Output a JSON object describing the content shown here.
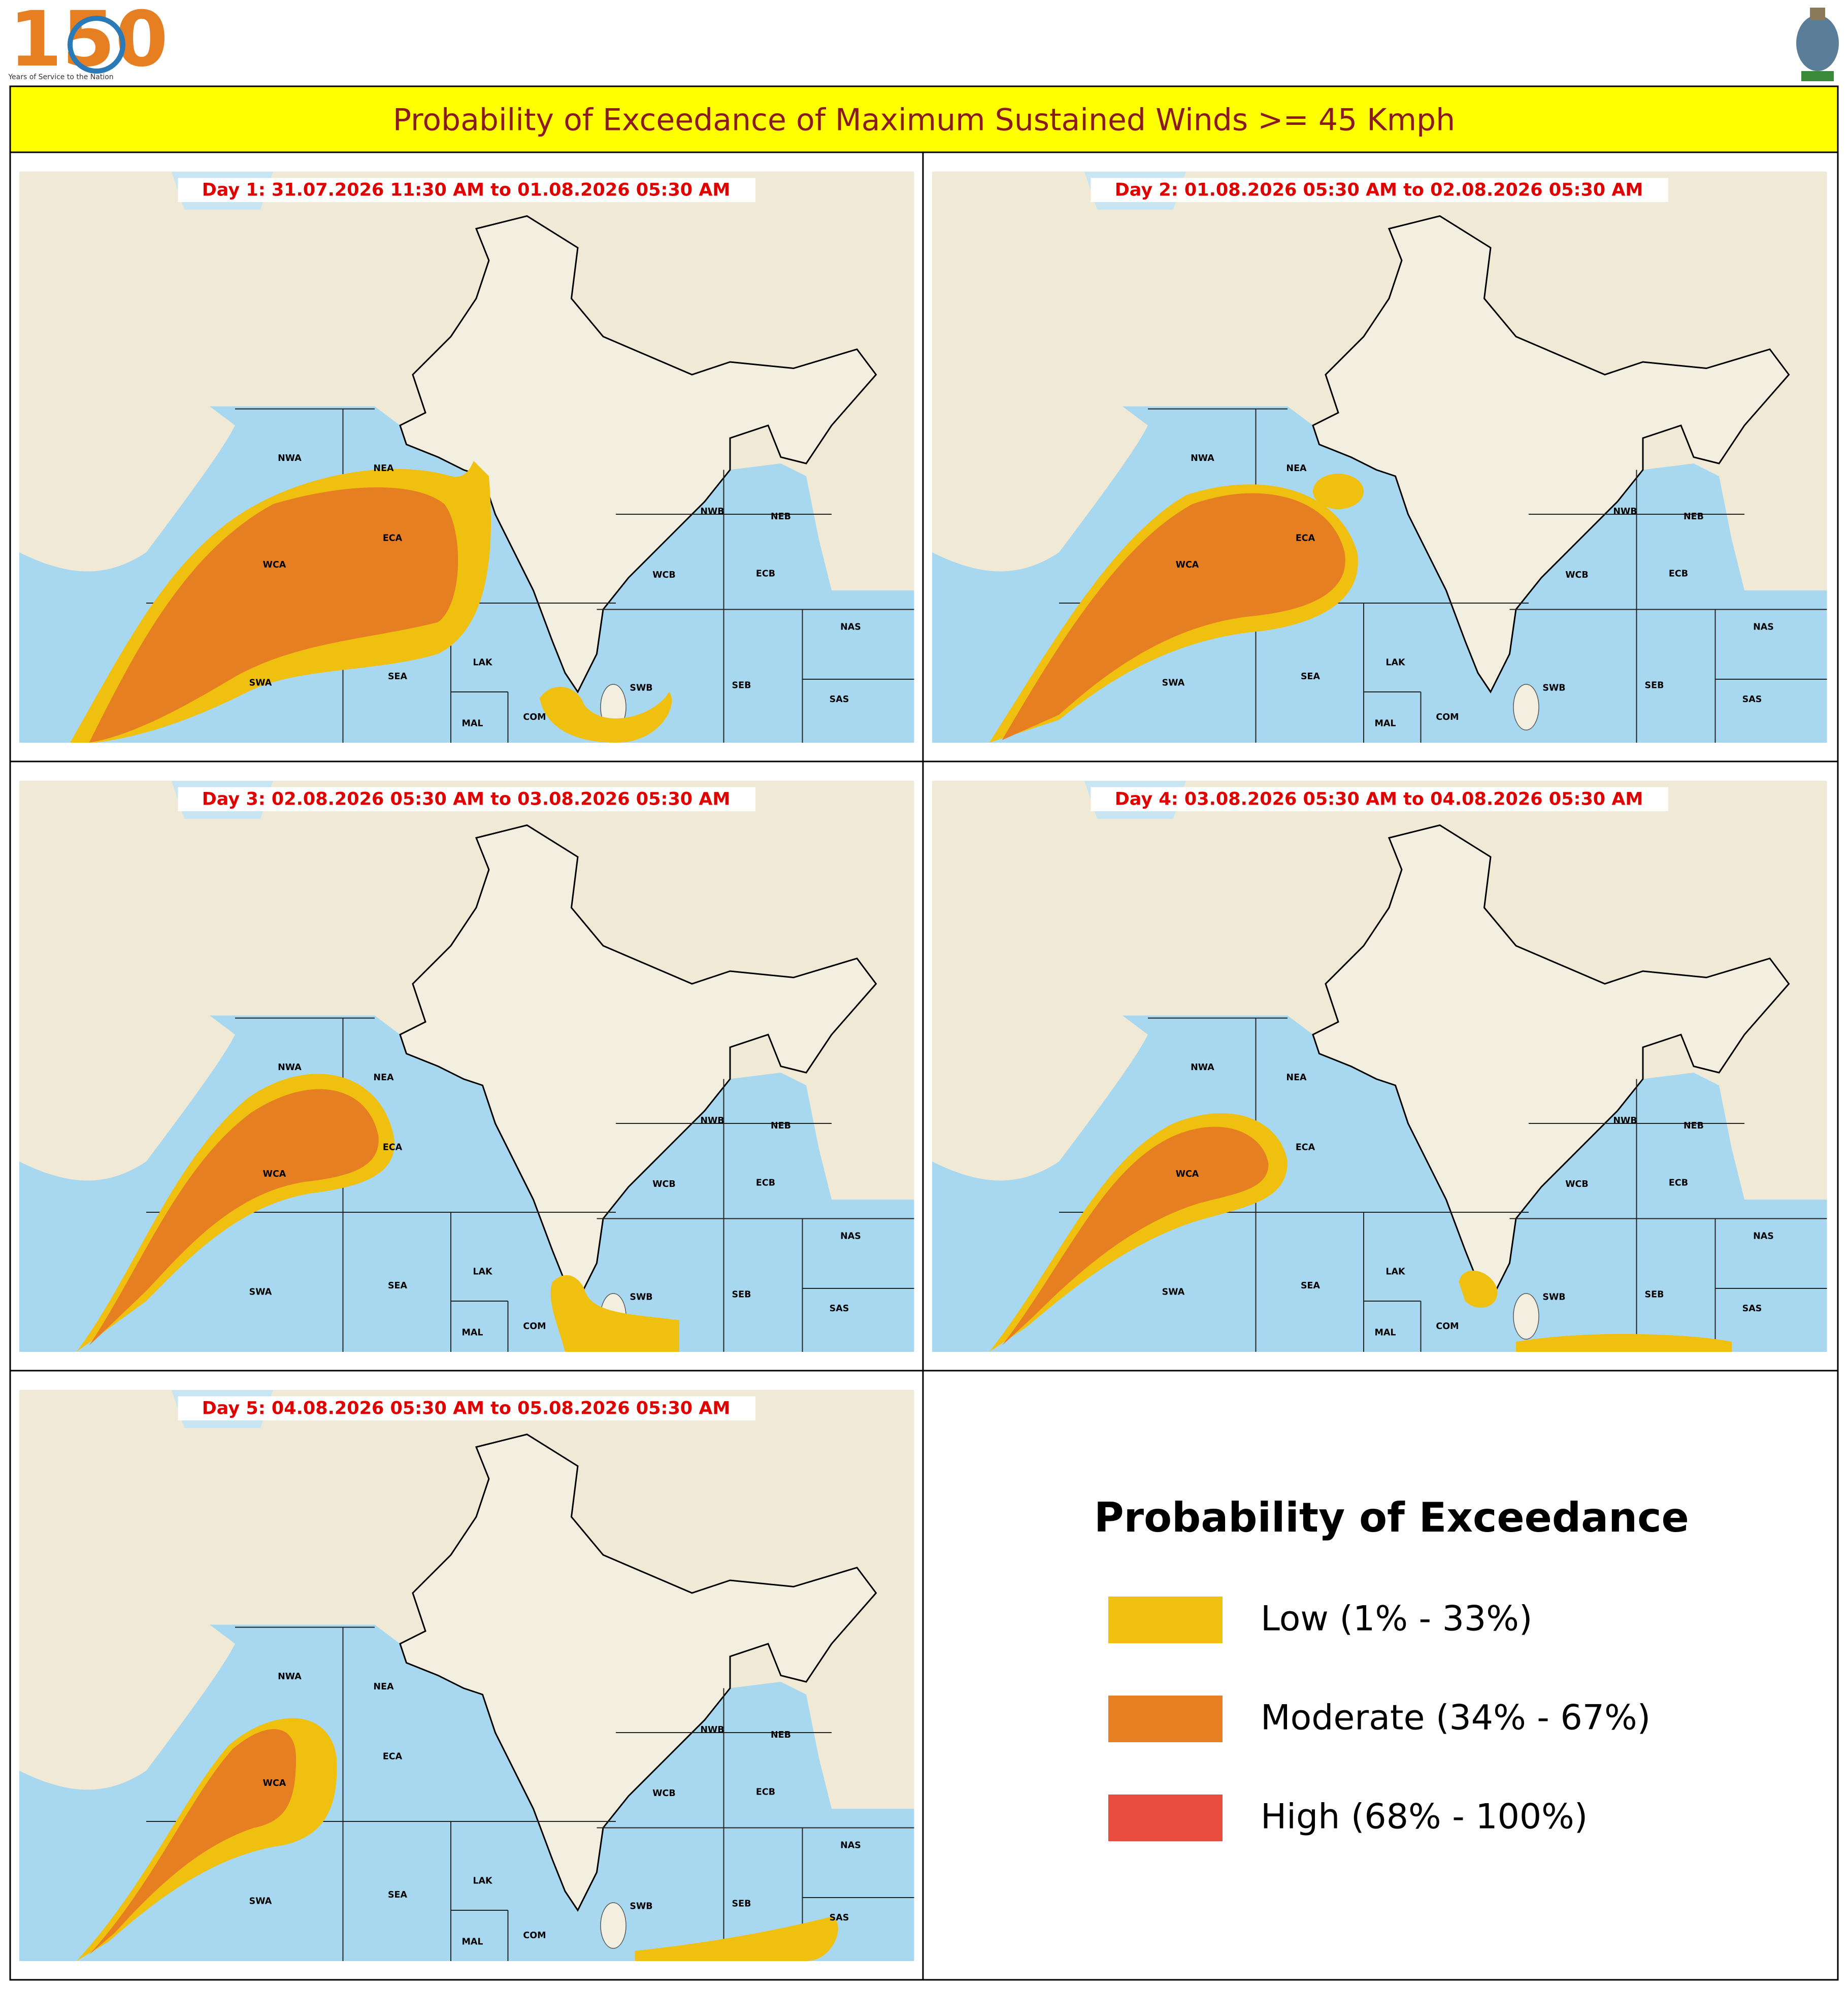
{
  "header": {
    "logo_number": "150",
    "logo_tagline": "Years of Service to the Nation"
  },
  "title": "Probability of Exceedance of Maximum Sustained Winds >= 45 Kmph",
  "panels": [
    {
      "label": "Day 1: 31.07.2026 11:30 AM to 01.08.2026 05:30 AM"
    },
    {
      "label": "Day 2: 01.08.2026 05:30 AM to 02.08.2026 05:30 AM"
    },
    {
      "label": "Day 3: 02.08.2026 05:30 AM to 03.08.2026 05:30 AM"
    },
    {
      "label": "Day 4: 03.08.2026 05:30 AM to 04.08.2026 05:30 AM"
    },
    {
      "label": "Day 5: 04.08.2026 05:30 AM to 05.08.2026 05:30 AM"
    }
  ],
  "regions": [
    "NWA",
    "NEA",
    "ECA",
    "WCA",
    "SWA",
    "SEA",
    "LAK",
    "MAL",
    "COM",
    "SWB",
    "SEB",
    "WCB",
    "ECB",
    "NWB",
    "NEB",
    "NAS",
    "SAS"
  ],
  "legend": {
    "title": "Probability of Exceedance",
    "items": [
      {
        "label": "Low (1% - 33%)",
        "color": "#f0c010"
      },
      {
        "label": "Moderate (34% - 67%)",
        "color": "#e67e22"
      },
      {
        "label": "High (68% - 100%)",
        "color": "#e74c3c"
      }
    ]
  }
}
